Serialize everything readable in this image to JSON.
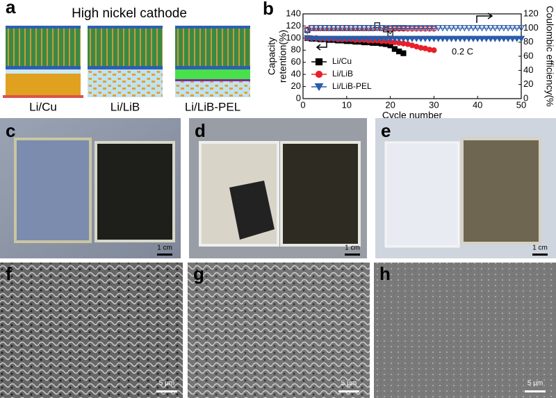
{
  "panel_labels": [
    "a",
    "b",
    "c",
    "d",
    "e",
    "f",
    "g",
    "h"
  ],
  "schematic": {
    "title": "High nickel cathode",
    "labels": [
      "Li/Cu",
      "Li/LiB",
      "Li/LiB-PEL"
    ]
  },
  "photo_scale_bars": [
    "1 cm",
    "1 cm",
    "1 cm"
  ],
  "sem_scale_bars": [
    "5 μm",
    "5 μm",
    "5 μm"
  ],
  "chart_data": {
    "type": "scatter",
    "xlabel": "Cycle number",
    "ylabel": [
      "Capacity",
      "retention(%)"
    ],
    "y2label": "Coulombic efficiency(%",
    "annotation": "0.2 C",
    "xlim": [
      0,
      50
    ],
    "xticks": [
      0,
      10,
      20,
      30,
      40,
      50
    ],
    "ylim": [
      0,
      140
    ],
    "yticks": [
      0,
      20,
      40,
      60,
      80,
      100,
      120,
      140
    ],
    "y2lim": [
      0,
      120
    ],
    "y2ticks": [
      0,
      20,
      40,
      60,
      80,
      100,
      120
    ],
    "series": [
      {
        "name": "Li/Cu",
        "color": "#000000",
        "marker": "square",
        "x": [
          1,
          2,
          3,
          4,
          5,
          6,
          7,
          8,
          9,
          10,
          11,
          12,
          13,
          14,
          15,
          16,
          17,
          18,
          19,
          20,
          21,
          22,
          23
        ],
        "values": [
          100,
          99,
          99,
          98,
          98,
          97,
          97,
          96,
          96,
          95,
          95,
          94,
          94,
          93,
          93,
          92,
          92,
          91,
          90,
          88,
          82,
          78,
          75
        ],
        "ce_values": [
          97,
          100,
          100,
          100,
          100,
          100,
          100,
          100,
          100,
          100,
          100,
          100,
          100,
          100,
          100,
          100,
          104,
          100,
          98,
          92,
          100,
          100,
          100
        ]
      },
      {
        "name": "Li/LiB",
        "color": "#e8202a",
        "marker": "circle",
        "x": [
          1,
          2,
          3,
          4,
          5,
          6,
          7,
          8,
          9,
          10,
          11,
          12,
          13,
          14,
          15,
          16,
          17,
          18,
          19,
          20,
          21,
          22,
          23,
          24,
          25,
          26,
          27,
          28,
          29,
          30
        ],
        "values": [
          100,
          100,
          100,
          99,
          99,
          99,
          99,
          98,
          98,
          98,
          98,
          97,
          97,
          97,
          96,
          96,
          96,
          95,
          95,
          94,
          93,
          92,
          91,
          90,
          88,
          86,
          84,
          83,
          81,
          80
        ],
        "ce_values": [
          98,
          100,
          100,
          100,
          100,
          100,
          100,
          100,
          100,
          100,
          100,
          100,
          100,
          100,
          100,
          100,
          100,
          100,
          100,
          99,
          99,
          99,
          99,
          99,
          99,
          99,
          99,
          99,
          99,
          99
        ]
      },
      {
        "name": "Li/LiB-PEL",
        "color": "#2a5caa",
        "marker": "triangle-down",
        "x": [
          1,
          2,
          3,
          4,
          5,
          6,
          7,
          8,
          9,
          10,
          11,
          12,
          13,
          14,
          15,
          16,
          17,
          18,
          19,
          20,
          21,
          22,
          23,
          24,
          25,
          26,
          27,
          28,
          29,
          30,
          31,
          32,
          33,
          34,
          35,
          36,
          37,
          38,
          39,
          40,
          41,
          42,
          43,
          44,
          45,
          46,
          47,
          48,
          49,
          50
        ],
        "values": [
          100,
          99,
          99,
          99,
          99,
          99,
          99,
          99,
          99,
          99,
          99,
          99,
          99,
          99,
          99,
          99,
          99,
          99,
          99,
          99,
          99,
          99,
          99,
          99,
          99,
          99,
          99,
          99,
          99,
          99,
          99,
          99,
          99,
          99,
          99,
          99,
          99,
          99,
          99,
          99,
          99,
          99,
          99,
          99,
          99,
          99,
          99,
          99,
          99,
          99
        ],
        "ce_values": [
          96,
          100,
          100,
          100,
          100,
          100,
          100,
          100,
          100,
          100,
          100,
          100,
          100,
          100,
          100,
          100,
          100,
          100,
          100,
          100,
          100,
          100,
          100,
          100,
          100,
          100,
          100,
          100,
          100,
          100,
          100,
          100,
          100,
          100,
          100,
          100,
          100,
          100,
          100,
          100,
          100,
          100,
          100,
          100,
          100,
          100,
          100,
          100,
          100,
          100
        ]
      }
    ]
  }
}
